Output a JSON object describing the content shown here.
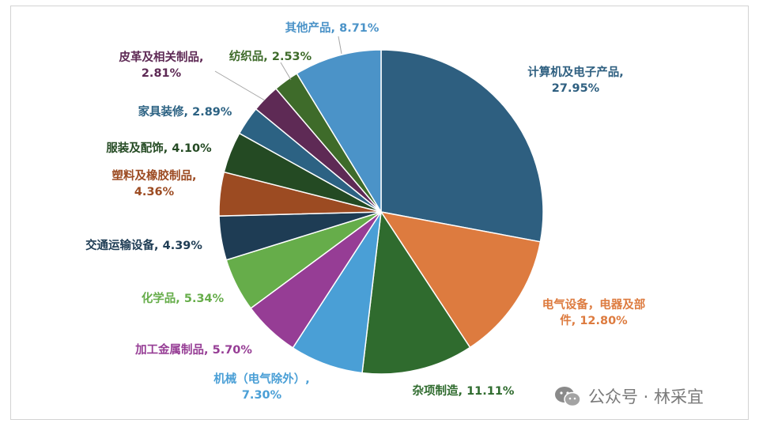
{
  "chart_data": {
    "type": "pie",
    "start_angle_deg": 0,
    "direction": "clockwise",
    "slices": [
      {
        "label_lines": [
          "计算机及电子产品,",
          "27.95%"
        ],
        "category": "计算机及电子产品",
        "value": 27.95,
        "color": "#2e5f80",
        "label_color": "#2e5f80"
      },
      {
        "label_lines": [
          "电气设备，电器及部",
          "件, 12.80%"
        ],
        "category": "电气设备，电器及部件",
        "value": 12.8,
        "color": "#dd7b3f",
        "label_color": "#dd7b3f"
      },
      {
        "label_lines": [
          "杂项制造, 11.11%"
        ],
        "category": "杂项制造",
        "value": 11.11,
        "color": "#2f6b2e",
        "label_color": "#2f6b2e"
      },
      {
        "label_lines": [
          "机械（电气除外）,",
          "7.30%"
        ],
        "category": "机械（电气除外）",
        "value": 7.3,
        "color": "#4a9fd6",
        "label_color": "#4a9fd6"
      },
      {
        "label_lines": [
          "加工金属制品, 5.70%"
        ],
        "category": "加工金属制品",
        "value": 5.7,
        "color": "#963d95",
        "label_color": "#963d95"
      },
      {
        "label_lines": [
          "化学品, 5.34%"
        ],
        "category": "化学品",
        "value": 5.34,
        "color": "#66ad4a",
        "label_color": "#66ad4a"
      },
      {
        "label_lines": [
          "交通运输设备, 4.39%"
        ],
        "category": "交通运输设备",
        "value": 4.39,
        "color": "#1e3c54",
        "label_color": "#1e3c54"
      },
      {
        "label_lines": [
          "塑料及橡胶制品,",
          "4.36%"
        ],
        "category": "塑料及橡胶制品",
        "value": 4.36,
        "color": "#9c4b22",
        "label_color": "#9c4b22"
      },
      {
        "label_lines": [
          "服装及配饰, 4.10%"
        ],
        "category": "服装及配饰",
        "value": 4.1,
        "color": "#244a23",
        "label_color": "#244a23"
      },
      {
        "label_lines": [
          "家具装修, 2.89%"
        ],
        "category": "家具装修",
        "value": 2.89,
        "color": "#2c6283",
        "label_color": "#2c6283"
      },
      {
        "label_lines": [
          "皮革及相关制品,",
          "2.81%"
        ],
        "category": "皮革及相关制品",
        "value": 2.81,
        "color": "#5e2a55",
        "label_color": "#5e2a55"
      },
      {
        "label_lines": [
          "纺织品, 2.53%"
        ],
        "category": "纺织品",
        "value": 2.53,
        "color": "#3e6b2a",
        "label_color": "#3e6b2a"
      },
      {
        "label_lines": [
          "其他产品, 8.71%"
        ],
        "category": "其他产品",
        "value": 8.71,
        "color": "#4b93c8",
        "label_color": "#4b93c8"
      }
    ]
  },
  "watermark": {
    "text": "公众号 · 林采宜",
    "icon": "wechat-icon"
  }
}
